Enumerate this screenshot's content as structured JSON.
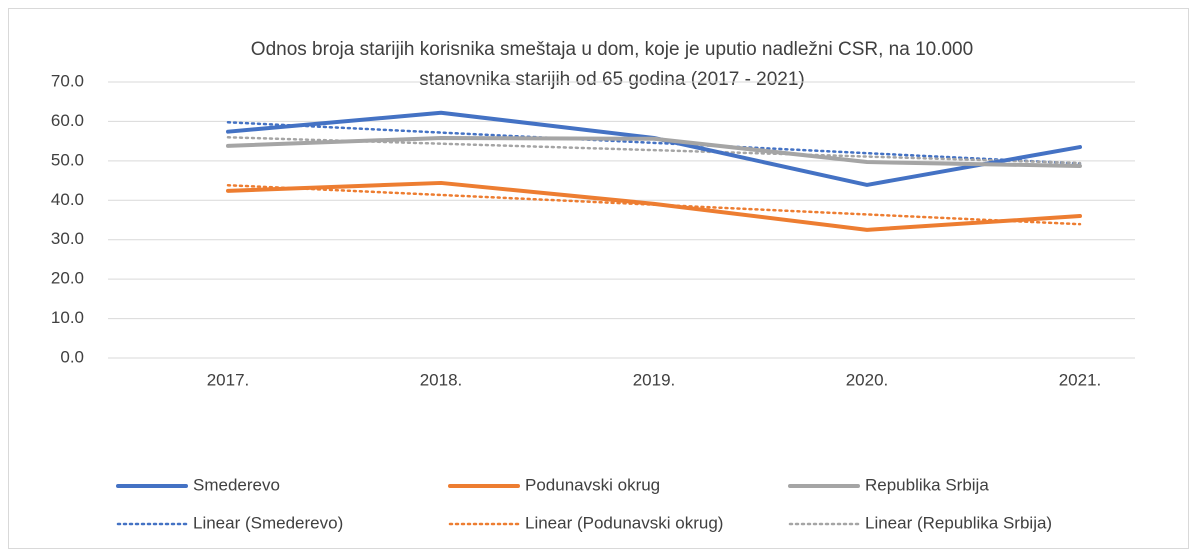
{
  "chart_data": {
    "type": "line",
    "title": [
      "Odnos broja starijih korisnika smeštaja u dom, koje je uputio nadležni CSR, na 10.000",
      "stanovnika starijih od 65 godina (2017 - 2021)"
    ],
    "categories": [
      "2017.",
      "2018.",
      "2019.",
      "2020.",
      "2021."
    ],
    "ylim": [
      0,
      70
    ],
    "yticks": [
      {
        "value": 0,
        "label": "0.0"
      },
      {
        "value": 10,
        "label": "10.0"
      },
      {
        "value": 20,
        "label": "20.0"
      },
      {
        "value": 30,
        "label": "30.0"
      },
      {
        "value": 40,
        "label": "40.0"
      },
      {
        "value": 50,
        "label": "50.0"
      },
      {
        "value": 60,
        "label": "60.0"
      },
      {
        "value": 70,
        "label": "70.0"
      }
    ],
    "grid": true,
    "legend": "bottom",
    "series": [
      {
        "name": "Smederevo",
        "color": "#4472c4",
        "values": [
          57.4,
          62.2,
          55.8,
          43.9,
          53.5
        ]
      },
      {
        "name": "Podunavski okrug",
        "color": "#ed7d31",
        "values": [
          42.4,
          44.4,
          39.1,
          32.5,
          36.0
        ]
      },
      {
        "name": "Republika Srbija",
        "color": "#a5a5a5",
        "values": [
          53.8,
          55.8,
          55.6,
          49.7,
          48.7
        ]
      },
      {
        "name": "Linear (Smederevo)",
        "color": "#4472c4",
        "dotted": true,
        "values": [
          59.78,
          57.17,
          54.56,
          51.95,
          49.34
        ]
      },
      {
        "name": "Linear (Podunavski okrug)",
        "color": "#ed7d31",
        "dotted": true,
        "values": [
          43.82,
          41.35,
          38.88,
          36.41,
          33.94
        ]
      },
      {
        "name": "Linear (Republika Srbija)",
        "color": "#a5a5a5",
        "dotted": true,
        "values": [
          55.98,
          54.35,
          52.72,
          51.09,
          49.46
        ]
      }
    ]
  }
}
